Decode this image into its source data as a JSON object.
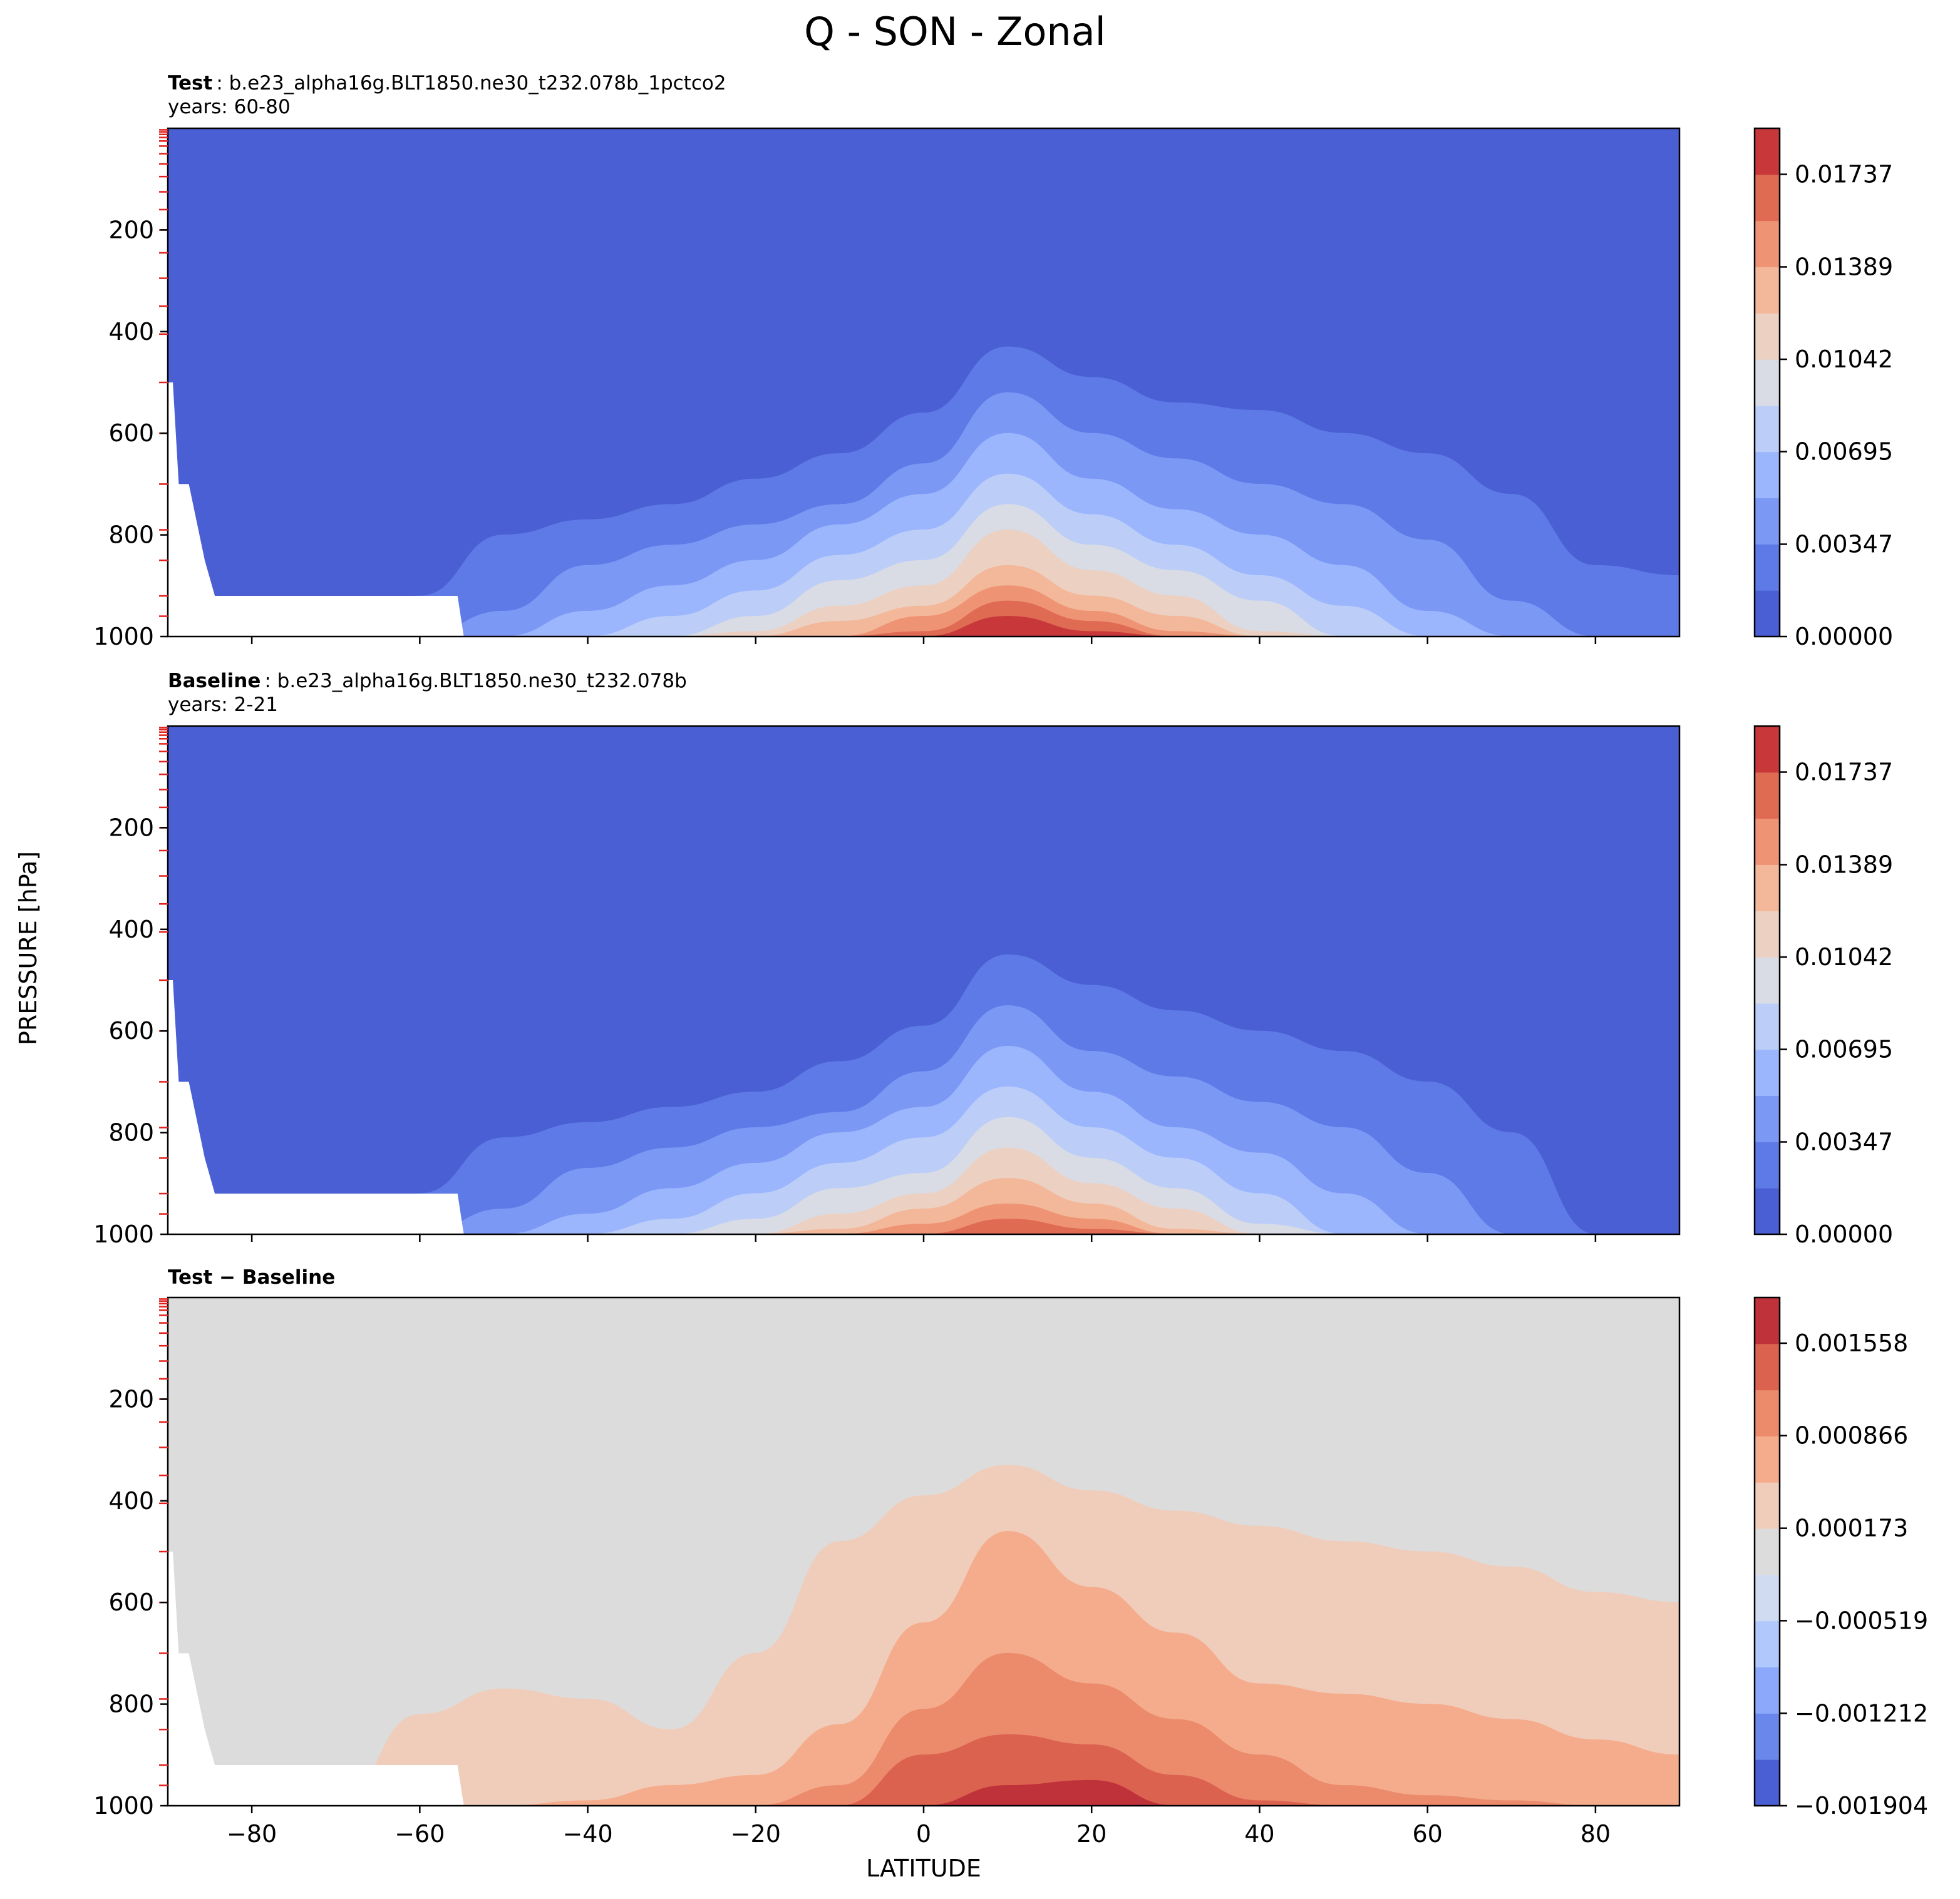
{
  "figure": {
    "title": "Q - SON - Zonal",
    "xlabel": "LATITUDE",
    "ylabel": "PRESSURE [hPa]"
  },
  "colors": {
    "test_levels": [
      "#4a5fd4",
      "#5e7ae6",
      "#7b98f5",
      "#9bb6fc",
      "#bccef8",
      "#d9dce4",
      "#ecd0c2",
      "#f3b79a",
      "#ee9474",
      "#e06b53",
      "#c8383a"
    ],
    "diff_levels": [
      "#4a5fd4",
      "#6a87ec",
      "#8ca8fa",
      "#b0c8fb",
      "#d0dbf2",
      "#dcdcdc",
      "#f0cdbb",
      "#f5ac8c",
      "#ec8a6c",
      "#dc6250",
      "#c0323a"
    ],
    "missing": "#ffffff",
    "tick_marks_red": "#e0201c"
  },
  "chart_data": [
    {
      "type": "heatmap",
      "panel": "test",
      "label_bold": "Test",
      "label_text": ": b.e23_alpha16g.BLT1850.ne30_t232.078b_1pctco2",
      "years": "years: 60-80",
      "xlim": [
        -90,
        90
      ],
      "ylim": [
        1000,
        0
      ],
      "yticks": [
        "200",
        "400",
        "600",
        "800",
        "1000"
      ],
      "xticks": [
        "−80",
        "−60",
        "−40",
        "−20",
        "0",
        "20",
        "40",
        "60",
        "80"
      ],
      "colorbar": {
        "ticks": [
          "0.00000",
          "0.00347",
          "0.00695",
          "0.01042",
          "0.01389",
          "0.01737"
        ],
        "min": 0.0,
        "max": 0.0191,
        "levels": 11
      },
      "contour_tops_hPa": {
        "lat": [
          -90,
          -80,
          -70,
          -60,
          -50,
          -40,
          -30,
          -20,
          -10,
          0,
          10,
          20,
          30,
          40,
          50,
          60,
          70,
          80,
          90
        ],
        "level_1": [
          1000,
          1000,
          1000,
          920,
          800,
          770,
          740,
          690,
          640,
          560,
          430,
          490,
          540,
          555,
          600,
          640,
          720,
          860,
          880
        ],
        "level_2": [
          1000,
          1000,
          1000,
          1000,
          950,
          860,
          820,
          780,
          740,
          660,
          520,
          600,
          650,
          700,
          740,
          810,
          930,
          1000,
          1000
        ],
        "level_3": [
          1000,
          1000,
          1000,
          1000,
          1000,
          950,
          900,
          850,
          780,
          720,
          600,
          690,
          750,
          800,
          860,
          950,
          1000,
          1000,
          1000
        ],
        "level_4": [
          1000,
          1000,
          1000,
          1000,
          1000,
          1000,
          960,
          910,
          840,
          790,
          680,
          760,
          820,
          880,
          940,
          1000,
          1000,
          1000,
          1000
        ],
        "level_5": [
          1000,
          1000,
          1000,
          1000,
          1000,
          1000,
          1000,
          960,
          890,
          850,
          740,
          820,
          870,
          930,
          1000,
          1000,
          1000,
          1000,
          1000
        ],
        "level_6": [
          1000,
          1000,
          1000,
          1000,
          1000,
          1000,
          1000,
          990,
          940,
          900,
          790,
          870,
          920,
          990,
          1000,
          1000,
          1000,
          1000,
          1000
        ],
        "level_7": [
          1000,
          1000,
          1000,
          1000,
          1000,
          1000,
          1000,
          1000,
          970,
          940,
          860,
          920,
          960,
          1000,
          1000,
          1000,
          1000,
          1000,
          1000
        ],
        "level_8": [
          1000,
          1000,
          1000,
          1000,
          1000,
          1000,
          1000,
          1000,
          1000,
          960,
          900,
          950,
          990,
          1000,
          1000,
          1000,
          1000,
          1000,
          1000
        ],
        "level_9": [
          1000,
          1000,
          1000,
          1000,
          1000,
          1000,
          1000,
          1000,
          1000,
          990,
          930,
          970,
          1000,
          1000,
          1000,
          1000,
          1000,
          1000,
          1000
        ],
        "level_10": [
          1000,
          1000,
          1000,
          1000,
          1000,
          1000,
          1000,
          1000,
          1000,
          1000,
          960,
          990,
          1000,
          1000,
          1000,
          1000,
          1000,
          1000,
          1000
        ]
      }
    },
    {
      "type": "heatmap",
      "panel": "baseline",
      "label_bold": "Baseline",
      "label_text": ": b.e23_alpha16g.BLT1850.ne30_t232.078b",
      "years": "years: 2-21",
      "xlim": [
        -90,
        90
      ],
      "ylim": [
        1000,
        0
      ],
      "yticks": [
        "200",
        "400",
        "600",
        "800",
        "1000"
      ],
      "xticks": [
        "−80",
        "−60",
        "−40",
        "−20",
        "0",
        "20",
        "40",
        "60",
        "80"
      ],
      "colorbar": {
        "ticks": [
          "0.00000",
          "0.00347",
          "0.00695",
          "0.01042",
          "0.01389",
          "0.01737"
        ],
        "min": 0.0,
        "max": 0.0191,
        "levels": 11
      },
      "contour_tops_hPa": {
        "lat": [
          -90,
          -80,
          -70,
          -60,
          -50,
          -40,
          -30,
          -20,
          -10,
          0,
          10,
          20,
          30,
          40,
          50,
          60,
          70,
          80,
          90
        ],
        "level_1": [
          1000,
          1000,
          1000,
          920,
          810,
          780,
          750,
          720,
          660,
          590,
          450,
          510,
          560,
          600,
          640,
          700,
          800,
          1000,
          1000
        ],
        "level_2": [
          1000,
          1000,
          1000,
          1000,
          950,
          870,
          830,
          790,
          760,
          680,
          550,
          640,
          690,
          740,
          790,
          880,
          1000,
          1000,
          1000
        ],
        "level_3": [
          1000,
          1000,
          1000,
          1000,
          1000,
          960,
          910,
          860,
          800,
          750,
          630,
          720,
          790,
          840,
          920,
          1000,
          1000,
          1000,
          1000
        ],
        "level_4": [
          1000,
          1000,
          1000,
          1000,
          1000,
          1000,
          970,
          920,
          860,
          810,
          710,
          790,
          850,
          920,
          1000,
          1000,
          1000,
          1000,
          1000
        ],
        "level_5": [
          1000,
          1000,
          1000,
          1000,
          1000,
          1000,
          1000,
          970,
          910,
          880,
          770,
          850,
          910,
          980,
          1000,
          1000,
          1000,
          1000,
          1000
        ],
        "level_6": [
          1000,
          1000,
          1000,
          1000,
          1000,
          1000,
          1000,
          1000,
          960,
          920,
          830,
          900,
          950,
          1000,
          1000,
          1000,
          1000,
          1000,
          1000
        ],
        "level_7": [
          1000,
          1000,
          1000,
          1000,
          1000,
          1000,
          1000,
          1000,
          990,
          950,
          890,
          940,
          990,
          1000,
          1000,
          1000,
          1000,
          1000,
          1000
        ],
        "level_8": [
          1000,
          1000,
          1000,
          1000,
          1000,
          1000,
          1000,
          1000,
          1000,
          980,
          940,
          970,
          1000,
          1000,
          1000,
          1000,
          1000,
          1000,
          1000
        ],
        "level_9": [
          1000,
          1000,
          1000,
          1000,
          1000,
          1000,
          1000,
          1000,
          1000,
          1000,
          970,
          990,
          1000,
          1000,
          1000,
          1000,
          1000,
          1000,
          1000
        ],
        "level_10": [
          1000,
          1000,
          1000,
          1000,
          1000,
          1000,
          1000,
          1000,
          1000,
          1000,
          1000,
          1000,
          1000,
          1000,
          1000,
          1000,
          1000,
          1000,
          1000
        ]
      }
    },
    {
      "type": "heatmap",
      "panel": "difference",
      "label_bold": "Test − Baseline",
      "label_text": "",
      "years": "",
      "xlim": [
        -90,
        90
      ],
      "ylim": [
        1000,
        0
      ],
      "yticks": [
        "200",
        "400",
        "600",
        "800",
        "1000"
      ],
      "xticks": [
        "−80",
        "−60",
        "−40",
        "−20",
        "0",
        "20",
        "40",
        "60",
        "80"
      ],
      "colorbar": {
        "ticks": [
          "−0.001904",
          "−0.001212",
          "−0.000519",
          "0.000173",
          "0.000866",
          "0.001558"
        ],
        "min": -0.001904,
        "max": 0.0019,
        "levels": 11
      },
      "contour_tops_hPa": {
        "lat": [
          -90,
          -80,
          -70,
          -60,
          -50,
          -40,
          -30,
          -20,
          -10,
          0,
          10,
          20,
          30,
          40,
          50,
          60,
          70,
          80,
          90
        ],
        "level_6": [
          1000,
          1000,
          1000,
          820,
          770,
          790,
          850,
          700,
          480,
          390,
          330,
          380,
          420,
          450,
          480,
          500,
          530,
          580,
          600
        ],
        "level_7": [
          1000,
          1000,
          1000,
          1000,
          1000,
          990,
          960,
          940,
          840,
          640,
          460,
          570,
          660,
          760,
          780,
          800,
          830,
          870,
          900
        ],
        "level_8": [
          1000,
          1000,
          1000,
          1000,
          1000,
          1000,
          1000,
          1000,
          960,
          810,
          700,
          760,
          830,
          900,
          960,
          980,
          990,
          1000,
          1000
        ],
        "level_9": [
          1000,
          1000,
          1000,
          1000,
          1000,
          1000,
          1000,
          1000,
          1000,
          900,
          860,
          880,
          940,
          990,
          1000,
          1000,
          1000,
          1000,
          1000
        ],
        "level_10": [
          1000,
          1000,
          1000,
          1000,
          1000,
          1000,
          1000,
          1000,
          1000,
          1000,
          960,
          950,
          1000,
          1000,
          1000,
          1000,
          1000,
          1000,
          1000
        ]
      }
    }
  ]
}
